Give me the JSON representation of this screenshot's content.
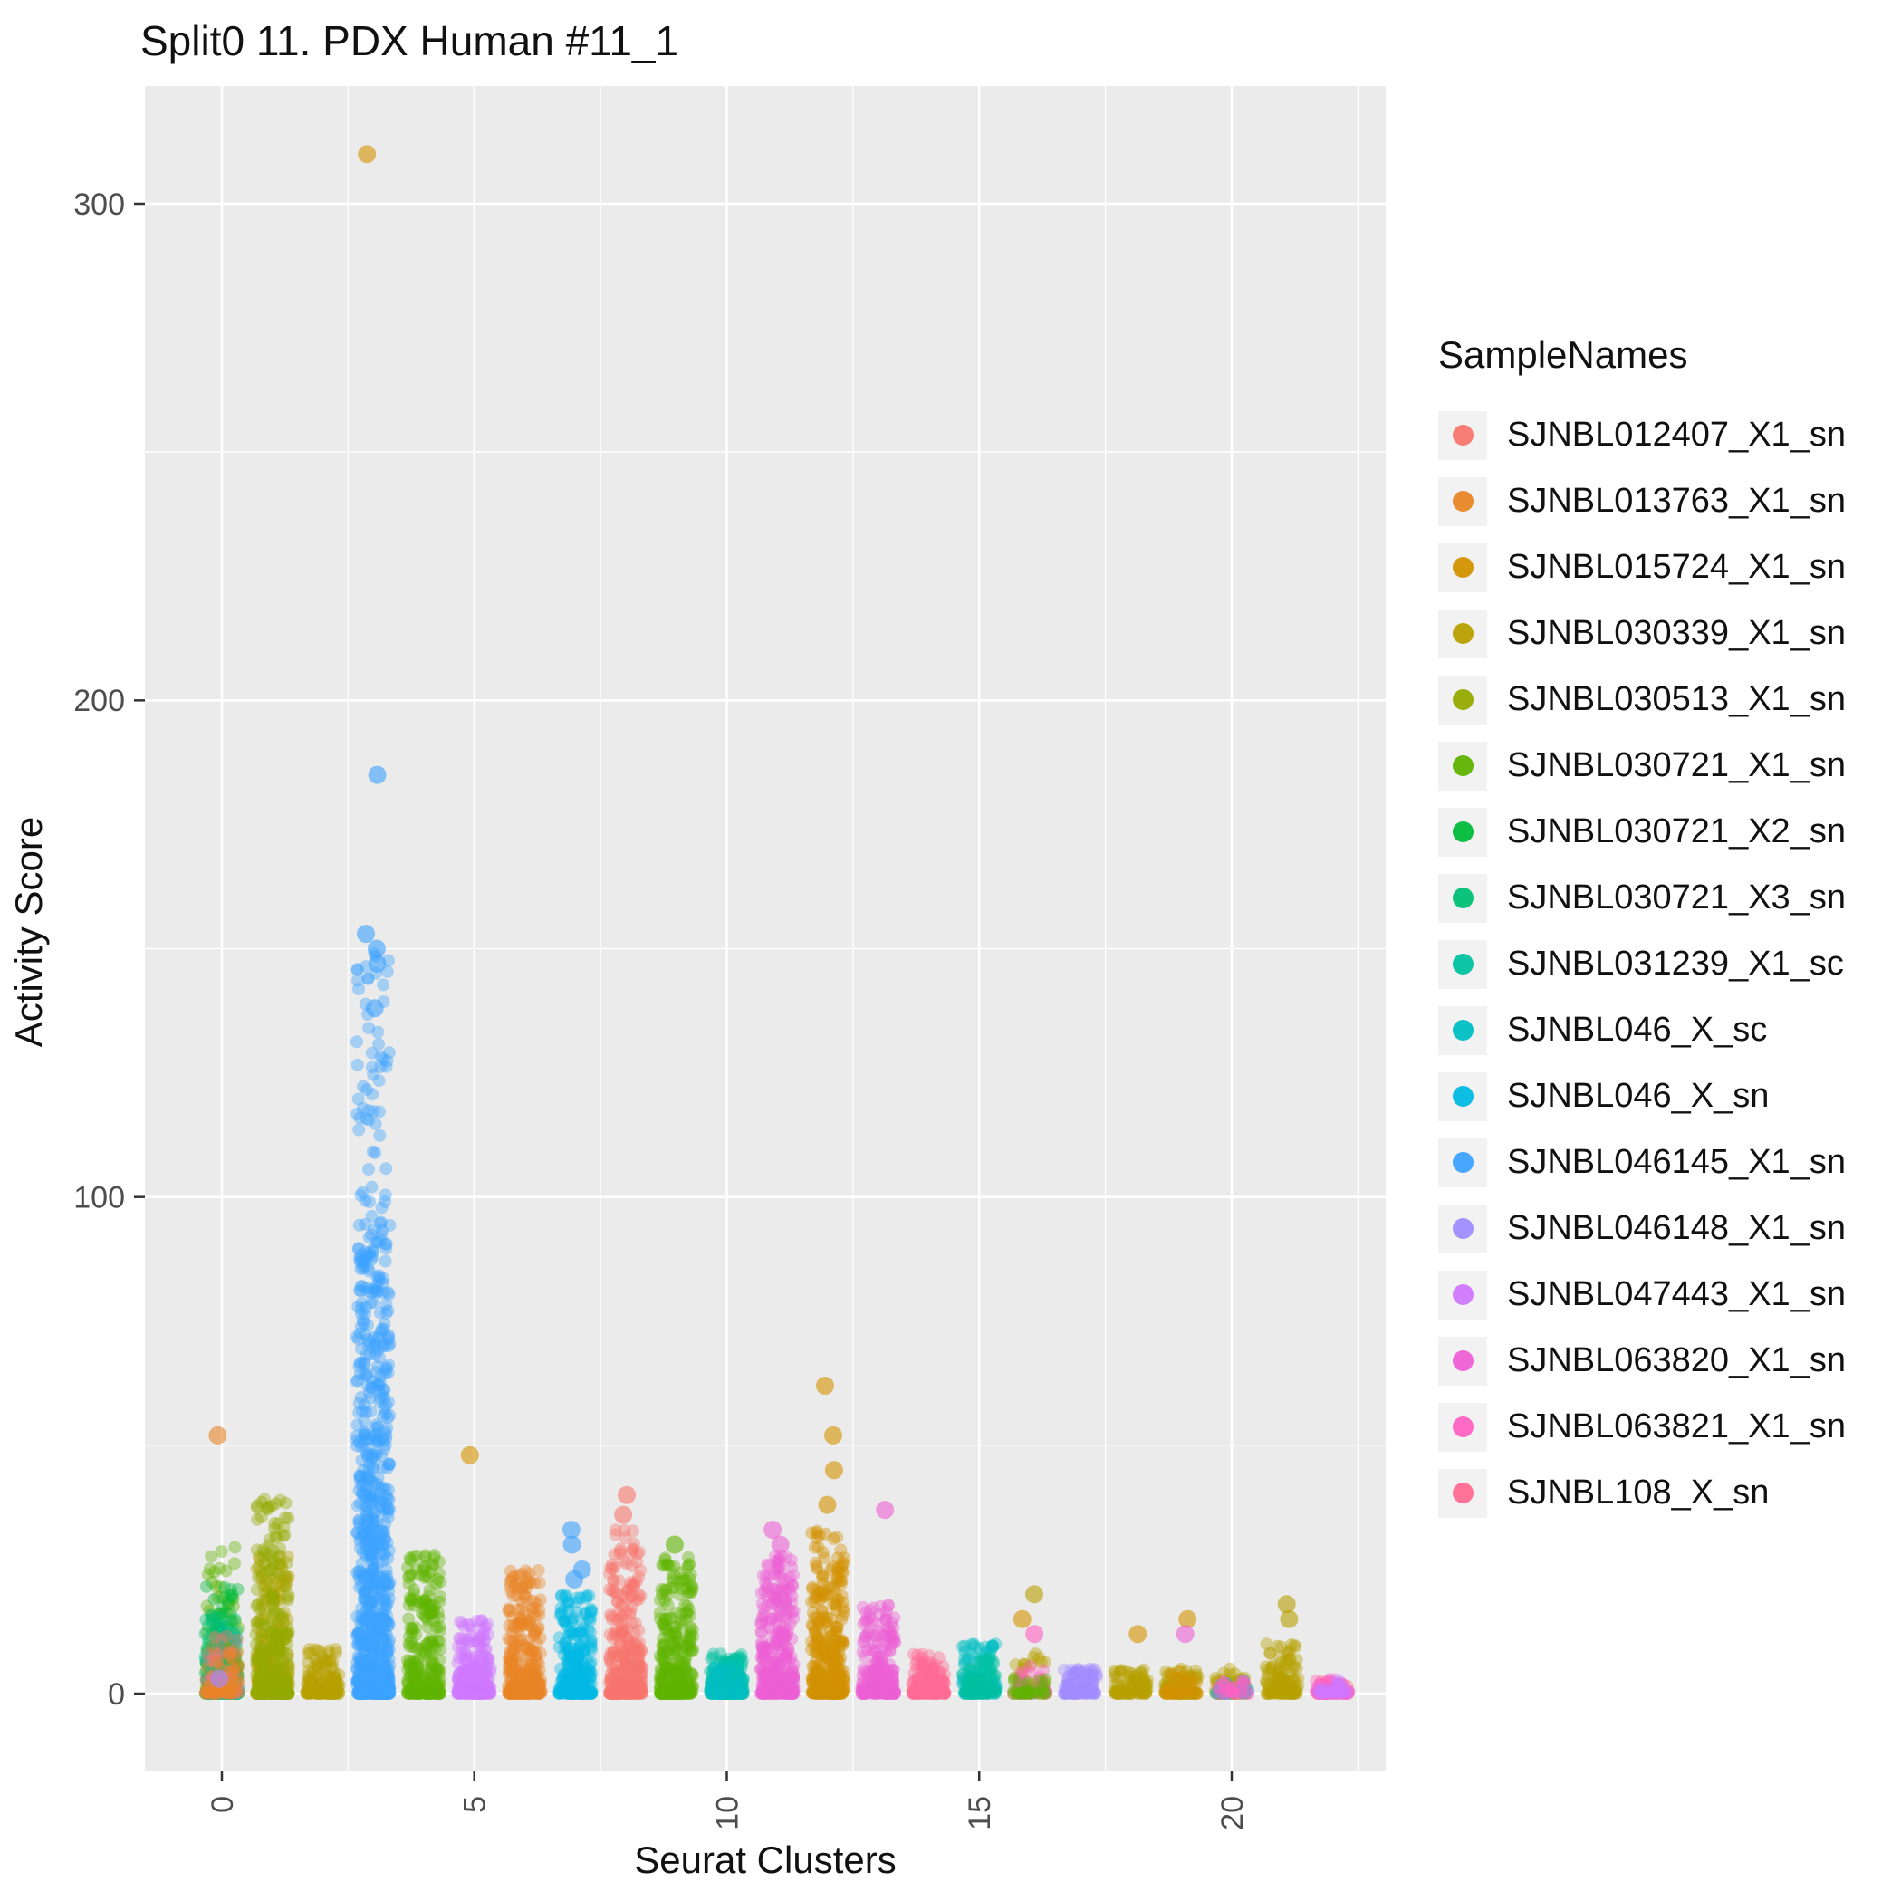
{
  "chart_data": {
    "type": "scatter",
    "title": "Split0 11. PDX Human #11_1",
    "xlabel": "Seurat Clusters",
    "ylabel": "Activity Score",
    "legend_title": "SampleNames",
    "legend_position": "right",
    "grid": true,
    "panel_bg": "#EBEBEB",
    "grid_color": "#FFFFFF",
    "tick_label_color": "#4D4D4D",
    "x_ticks": [
      0,
      5,
      10,
      15,
      20
    ],
    "x_minor_ticks": [
      2.5,
      7.5,
      12.5,
      17.5,
      22.5
    ],
    "y_ticks": [
      0,
      100,
      200,
      300
    ],
    "y_minor_ticks": [
      50,
      150,
      250
    ],
    "xlim": [
      -1.5,
      23.1
    ],
    "ylim": [
      -16,
      323
    ],
    "samples": [
      {
        "name": "SJNBL012407_X1_sn",
        "color": "#F8766D"
      },
      {
        "name": "SJNBL013763_X1_sn",
        "color": "#E88526"
      },
      {
        "name": "SJNBL015724_X1_sn",
        "color": "#D39200"
      },
      {
        "name": "SJNBL030339_X1_sn",
        "color": "#B79F00"
      },
      {
        "name": "SJNBL030513_X1_sn",
        "color": "#93AA00"
      },
      {
        "name": "SJNBL030721_X1_sn",
        "color": "#5EB300"
      },
      {
        "name": "SJNBL030721_X2_sn",
        "color": "#00BA38"
      },
      {
        "name": "SJNBL030721_X3_sn",
        "color": "#00BF74"
      },
      {
        "name": "SJNBL031239_X1_sc",
        "color": "#00C19F"
      },
      {
        "name": "SJNBL046_X_sc",
        "color": "#00BFC4"
      },
      {
        "name": "SJNBL046_X_sn",
        "color": "#00B9E3"
      },
      {
        "name": "SJNBL046145_X1_sn",
        "color": "#3DA2FF"
      },
      {
        "name": "SJNBL046148_X1_sn",
        "color": "#9F8CFF"
      },
      {
        "name": "SJNBL047443_X1_sn",
        "color": "#CF78FF"
      },
      {
        "name": "SJNBL063820_X1_sn",
        "color": "#EE5FD5"
      },
      {
        "name": "SJNBL063821_X1_sn",
        "color": "#FF61C3"
      },
      {
        "name": "SJNBL108_X_sn",
        "color": "#FF6B94"
      }
    ],
    "clusters": [
      {
        "x": 0,
        "groups": [
          [
            "SJNBL030721_X1_sn",
            120,
            30,
            3
          ],
          [
            "SJNBL030721_X2_sn",
            150,
            22,
            3
          ],
          [
            "SJNBL030721_X3_sn",
            100,
            16,
            3
          ],
          [
            "SJNBL031239_X1_sc",
            80,
            13,
            3
          ],
          [
            "SJNBL012407_X1_sn",
            60,
            12,
            3
          ],
          [
            "SJNBL013763_X1_sn",
            40,
            10,
            3
          ]
        ],
        "outliers": [
          [
            "SJNBL013763_X1_sn",
            52
          ],
          [
            "SJNBL046148_X1_sn",
            3
          ]
        ]
      },
      {
        "x": 1,
        "groups": [
          [
            "SJNBL030339_X1_sn",
            260,
            28,
            3
          ],
          [
            "SJNBL030513_X1_sn",
            260,
            40,
            3.2
          ]
        ],
        "outliers": []
      },
      {
        "x": 2,
        "groups": [
          [
            "SJNBL030339_X1_sn",
            160,
            9,
            3
          ]
        ],
        "outliers": []
      },
      {
        "x": 3,
        "groups": [
          [
            "SJNBL046145_X1_sn",
            800,
            95,
            3
          ],
          [
            "SJNBL046145_X1_sn",
            150,
            150,
            1.1
          ]
        ],
        "outliers": [
          [
            "SJNBL015724_X1_sn",
            310
          ],
          [
            "SJNBL046145_X1_sn",
            185
          ],
          [
            "SJNBL046145_X1_sn",
            153
          ],
          [
            "SJNBL046145_X1_sn",
            150
          ],
          [
            "SJNBL046145_X1_sn",
            147
          ],
          [
            "SJNBL046145_X1_sn",
            138
          ]
        ]
      },
      {
        "x": 4,
        "groups": [
          [
            "SJNBL030721_X1_sn",
            260,
            28,
            3
          ]
        ],
        "outliers": []
      },
      {
        "x": 5,
        "groups": [
          [
            "SJNBL047443_X1_sn",
            220,
            15,
            3
          ]
        ],
        "outliers": [
          [
            "SJNBL015724_X1_sn",
            48
          ]
        ]
      },
      {
        "x": 6,
        "groups": [
          [
            "SJNBL013763_X1_sn",
            300,
            25,
            3
          ]
        ],
        "outliers": []
      },
      {
        "x": 7,
        "groups": [
          [
            "SJNBL046_X_sn",
            280,
            20,
            3
          ]
        ],
        "outliers": [
          [
            "SJNBL046145_X1_sn",
            33
          ],
          [
            "SJNBL046145_X1_sn",
            30
          ],
          [
            "SJNBL046145_X1_sn",
            25
          ],
          [
            "SJNBL046145_X1_sn",
            23
          ]
        ]
      },
      {
        "x": 8,
        "groups": [
          [
            "SJNBL012407_X1_sn",
            350,
            33,
            3
          ]
        ],
        "outliers": [
          [
            "SJNBL012407_X1_sn",
            40
          ],
          [
            "SJNBL012407_X1_sn",
            36
          ]
        ]
      },
      {
        "x": 9,
        "groups": [
          [
            "SJNBL030721_X1_sn",
            300,
            28,
            3
          ]
        ],
        "outliers": [
          [
            "SJNBL030721_X1_sn",
            30
          ]
        ]
      },
      {
        "x": 10,
        "groups": [
          [
            "SJNBL031239_X1_sc",
            200,
            8,
            3
          ],
          [
            "SJNBL046_X_sc",
            80,
            6,
            3
          ]
        ],
        "outliers": []
      },
      {
        "x": 11,
        "groups": [
          [
            "SJNBL063820_X1_sn",
            350,
            28,
            3
          ]
        ],
        "outliers": [
          [
            "SJNBL063820_X1_sn",
            33
          ],
          [
            "SJNBL063820_X1_sn",
            30
          ]
        ]
      },
      {
        "x": 12,
        "groups": [
          [
            "SJNBL015724_X1_sn",
            350,
            33,
            3
          ]
        ],
        "outliers": [
          [
            "SJNBL015724_X1_sn",
            62
          ],
          [
            "SJNBL015724_X1_sn",
            52
          ],
          [
            "SJNBL015724_X1_sn",
            45
          ],
          [
            "SJNBL015724_X1_sn",
            38
          ]
        ]
      },
      {
        "x": 13,
        "groups": [
          [
            "SJNBL063820_X1_sn",
            220,
            18,
            3
          ]
        ],
        "outliers": [
          [
            "SJNBL063820_X1_sn",
            37
          ]
        ]
      },
      {
        "x": 14,
        "groups": [
          [
            "SJNBL108_X_sn",
            160,
            8,
            3
          ]
        ],
        "outliers": []
      },
      {
        "x": 15,
        "groups": [
          [
            "SJNBL046_X_sc",
            120,
            10,
            3
          ],
          [
            "SJNBL031239_X1_sc",
            80,
            8,
            3
          ]
        ],
        "outliers": []
      },
      {
        "x": 16,
        "groups": [
          [
            "SJNBL030339_X1_sn",
            50,
            8,
            3
          ],
          [
            "SJNBL063821_X1_sn",
            40,
            6,
            3
          ],
          [
            "SJNBL030721_X1_sn",
            30,
            4,
            3
          ]
        ],
        "outliers": [
          [
            "SJNBL030339_X1_sn",
            20
          ],
          [
            "SJNBL015724_X1_sn",
            15
          ],
          [
            "SJNBL063821_X1_sn",
            12
          ]
        ]
      },
      {
        "x": 17,
        "groups": [
          [
            "SJNBL046148_X1_sn",
            110,
            5,
            3
          ]
        ],
        "outliers": []
      },
      {
        "x": 18,
        "groups": [
          [
            "SJNBL030339_X1_sn",
            90,
            5,
            3
          ]
        ],
        "outliers": [
          [
            "SJNBL015724_X1_sn",
            12
          ]
        ]
      },
      {
        "x": 19,
        "groups": [
          [
            "SJNBL030339_X1_sn",
            80,
            5,
            3
          ],
          [
            "SJNBL015724_X1_sn",
            40,
            5,
            3
          ]
        ],
        "outliers": [
          [
            "SJNBL015724_X1_sn",
            15
          ],
          [
            "SJNBL063820_X1_sn",
            12
          ]
        ]
      },
      {
        "x": 20,
        "groups": [
          [
            "SJNBL030339_X1_sn",
            70,
            5,
            3
          ],
          [
            "SJNBL046_X_sn",
            25,
            3,
            3
          ],
          [
            "SJNBL063821_X1_sn",
            25,
            3,
            3
          ]
        ],
        "outliers": []
      },
      {
        "x": 21,
        "groups": [
          [
            "SJNBL030339_X1_sn",
            130,
            10,
            3
          ]
        ],
        "outliers": [
          [
            "SJNBL030339_X1_sn",
            18
          ],
          [
            "SJNBL030339_X1_sn",
            15
          ]
        ]
      },
      {
        "x": 22,
        "groups": [
          [
            "SJNBL108_X_sn",
            60,
            3,
            3
          ],
          [
            "SJNBL063821_X1_sn",
            40,
            3,
            3
          ],
          [
            "SJNBL047443_X1_sn",
            30,
            3,
            3
          ]
        ],
        "outliers": []
      }
    ]
  }
}
